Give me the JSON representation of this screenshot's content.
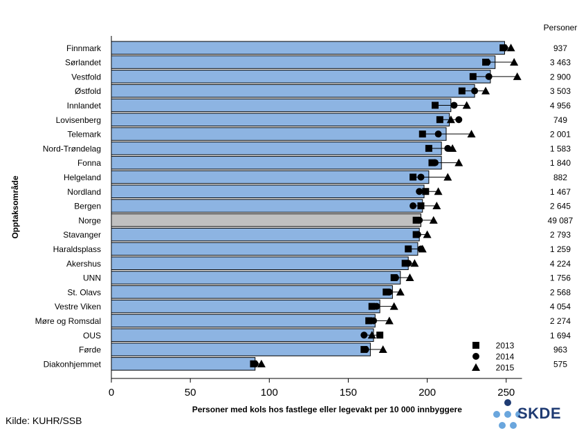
{
  "chart_data": {
    "type": "bar",
    "xlabel": "Personer med kols hos fastlege eller legevakt per 10 000 innbyggere",
    "ylabel": "Opptaksområde",
    "xlim": [
      0,
      260
    ],
    "xticks": [
      0,
      50,
      100,
      150,
      200,
      250
    ],
    "right_column_header": "Personer",
    "categories": [
      "Finnmark",
      "Sørlandet",
      "Vestfold",
      "Østfold",
      "Innlandet",
      "Lovisenberg",
      "Telemark",
      "Nord-Trøndelag",
      "Fonna",
      "Helgeland",
      "Nordland",
      "Bergen",
      "Norge",
      "Stavanger",
      "Haraldsplass",
      "Akershus",
      "UNN",
      "St. Olavs",
      "Vestre Viken",
      "Møre og Romsdal",
      "OUS",
      "Førde",
      "Diakonhjemmet"
    ],
    "highlight": "Norge",
    "bar_values": [
      249,
      243,
      240,
      230,
      215,
      214,
      212,
      209,
      209,
      201,
      198,
      197,
      196,
      195,
      194,
      188,
      183,
      178,
      170,
      167,
      166,
      164,
      91
    ],
    "persons": [
      "937",
      "3 463",
      "2 900",
      "3 503",
      "4 956",
      "749",
      "2 001",
      "1 583",
      "1 840",
      "882",
      "1 467",
      "2 645",
      "49 087",
      "2 793",
      "1 259",
      "4 224",
      "1 756",
      "2 568",
      "4 054",
      "2 274",
      "1 694",
      "963",
      "575"
    ],
    "series": [
      {
        "name": "2013",
        "marker": "square",
        "values": [
          248,
          237,
          229,
          222,
          205,
          208,
          197,
          201,
          203,
          191,
          199,
          196,
          193,
          193,
          188,
          186,
          179,
          174,
          165,
          163,
          170,
          160,
          90
        ]
      },
      {
        "name": "2014",
        "marker": "circle",
        "values": [
          249,
          238,
          239,
          230,
          217,
          220,
          207,
          213,
          205,
          196,
          195,
          191,
          195,
          194,
          196,
          188,
          180,
          176,
          168,
          166,
          160,
          161,
          91
        ]
      },
      {
        "name": "2015",
        "marker": "triangle",
        "values": [
          253,
          255,
          257,
          237,
          225,
          215,
          228,
          216,
          220,
          213,
          207,
          206,
          204,
          200,
          197,
          192,
          189,
          183,
          179,
          176,
          165,
          172,
          95
        ]
      }
    ],
    "legend_position": "bottom-right",
    "colors": {
      "bar": "#8db4e2",
      "highlight_bar": "#c0c0c0",
      "bar_edge": "#000000",
      "marker": "#000000"
    }
  },
  "footer": {
    "source": "Kilde: KUHR/SSB",
    "logo": "SKDE"
  },
  "logo_colors": {
    "dark": "#1f3b73",
    "light": "#6aa6dd"
  }
}
